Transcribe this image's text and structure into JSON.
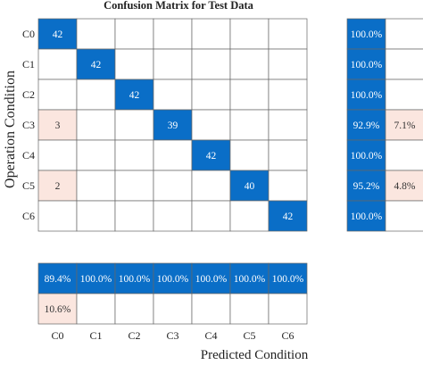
{
  "chart_data": {
    "type": "heatmap",
    "title": "Confusion Matrix for Test Data",
    "xlabel": "Predicted Condition",
    "ylabel": "Operation Condition",
    "classes": [
      "C0",
      "C1",
      "C2",
      "C3",
      "C4",
      "C5",
      "C6"
    ],
    "matrix": [
      [
        42,
        0,
        0,
        0,
        0,
        0,
        0
      ],
      [
        0,
        42,
        0,
        0,
        0,
        0,
        0
      ],
      [
        0,
        0,
        42,
        0,
        0,
        0,
        0
      ],
      [
        3,
        0,
        0,
        39,
        0,
        0,
        0
      ],
      [
        0,
        0,
        0,
        0,
        42,
        0,
        0
      ],
      [
        2,
        0,
        0,
        0,
        0,
        40,
        0
      ],
      [
        0,
        0,
        0,
        0,
        0,
        0,
        42
      ]
    ],
    "row_summary": [
      [
        "100.0%",
        ""
      ],
      [
        "100.0%",
        ""
      ],
      [
        "100.0%",
        ""
      ],
      [
        "92.9%",
        "7.1%"
      ],
      [
        "100.0%",
        ""
      ],
      [
        "95.2%",
        "4.8%"
      ],
      [
        "100.0%",
        ""
      ]
    ],
    "column_summary": [
      [
        "89.4%",
        "100.0%",
        "100.0%",
        "100.0%",
        "100.0%",
        "100.0%",
        "100.0%"
      ],
      [
        "10.6%",
        "",
        "",
        "",
        "",
        "",
        ""
      ]
    ],
    "colors": {
      "correct": "#0a6ec7",
      "error": "#fbe6df",
      "empty": "#ffffff",
      "correct_text": "#ffffff",
      "error_text": "#333333",
      "grid": "#666666"
    }
  }
}
